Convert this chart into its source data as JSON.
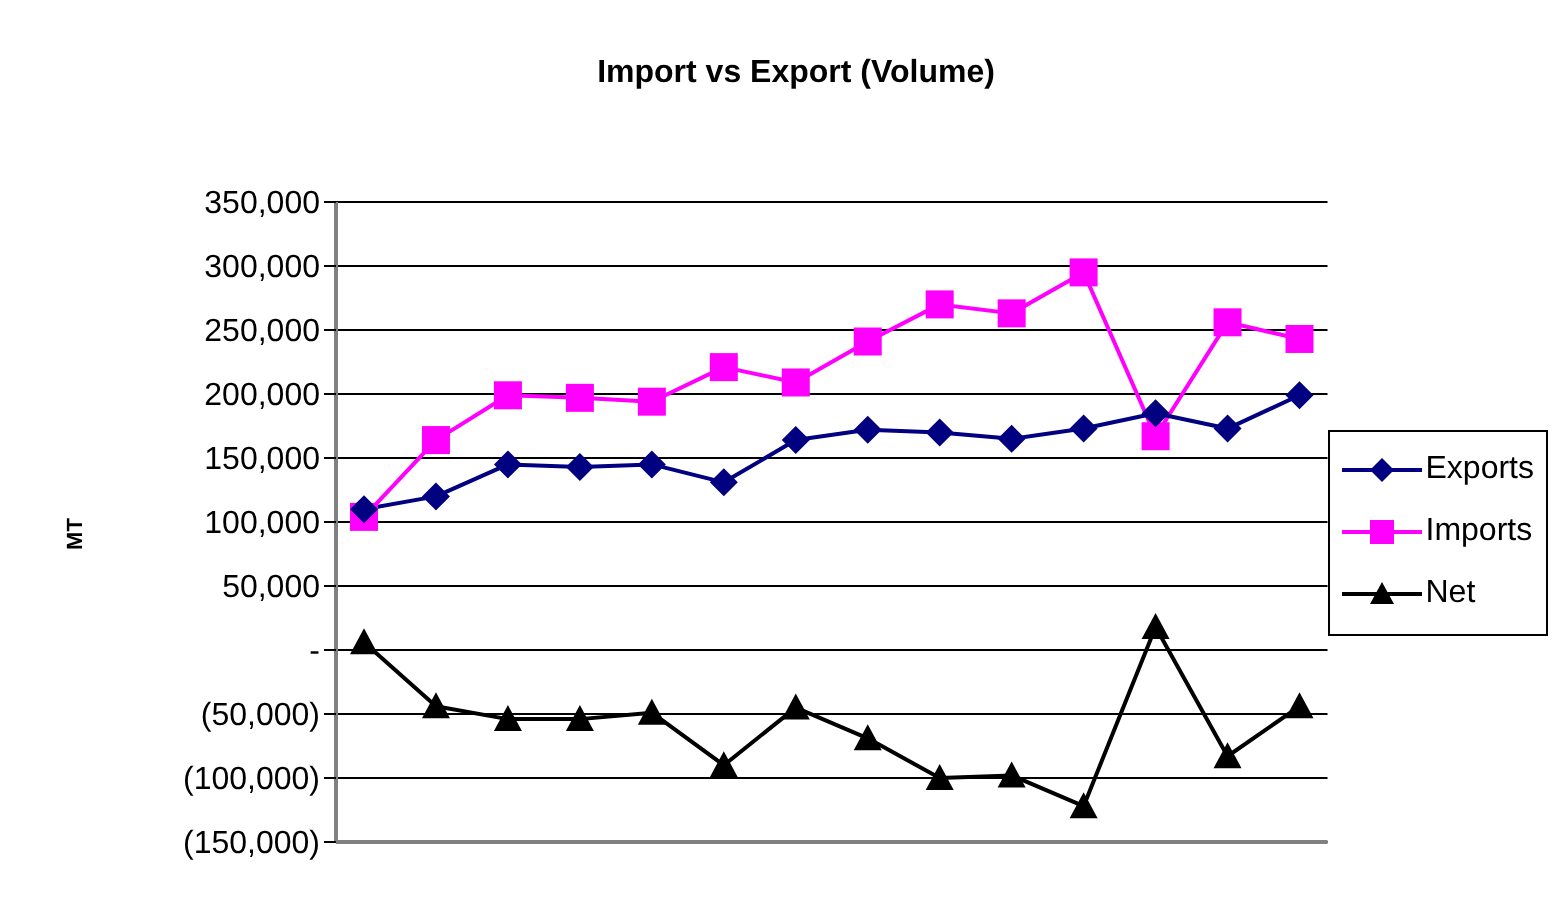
{
  "chart_data": {
    "type": "line",
    "title": "Import vs Export (Volume)",
    "ylabel": "MT",
    "categories": [
      null,
      null,
      null,
      null,
      null,
      null,
      null,
      null,
      null,
      null,
      null,
      null,
      null,
      null
    ],
    "series": [
      {
        "name": "Exports",
        "color": "#000080",
        "marker": "diamond",
        "values": [
          110000,
          120000,
          145000,
          143000,
          145000,
          131000,
          164000,
          172000,
          170000,
          165000,
          173000,
          185000,
          173000,
          199000
        ]
      },
      {
        "name": "Imports",
        "color": "#ff00ff",
        "marker": "square",
        "values": [
          104000,
          164000,
          199000,
          197000,
          194000,
          221000,
          209000,
          241000,
          270000,
          263000,
          295000,
          167000,
          256000,
          243000
        ]
      },
      {
        "name": "Net",
        "color": "#000000",
        "marker": "triangle",
        "values": [
          6000,
          -44000,
          -54000,
          -54000,
          -49000,
          -90000,
          -45000,
          -69000,
          -100000,
          -98000,
          -122000,
          18000,
          -83000,
          -44000
        ]
      }
    ],
    "ylim": [
      -150000,
      350000
    ],
    "yticks": [
      {
        "value": -150000,
        "label": "(150,000)"
      },
      {
        "value": -100000,
        "label": "(100,000)"
      },
      {
        "value": -50000,
        "label": "(50,000)"
      },
      {
        "value": 0,
        "label": "-"
      },
      {
        "value": 50000,
        "label": "50,000"
      },
      {
        "value": 100000,
        "label": "100,000"
      },
      {
        "value": 150000,
        "label": "150,000"
      },
      {
        "value": 200000,
        "label": "200,000"
      },
      {
        "value": 250000,
        "label": "250,000"
      },
      {
        "value": 300000,
        "label": "300,000"
      },
      {
        "value": 350000,
        "label": "350,000"
      }
    ],
    "grid": "y",
    "legend": "right",
    "tick_labels": "y",
    "line_style": "solid"
  }
}
